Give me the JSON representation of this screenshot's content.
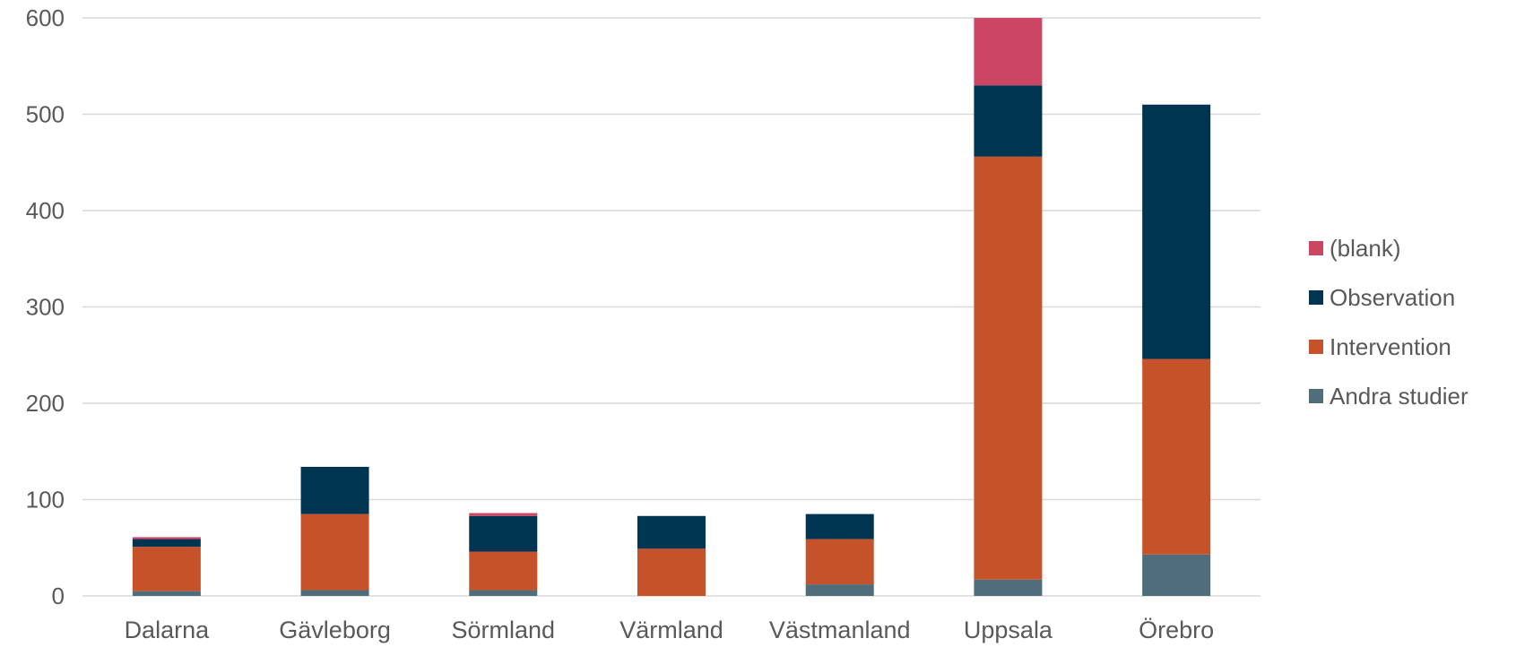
{
  "chart_data": {
    "type": "bar",
    "stacked": true,
    "categories": [
      "Dalarna",
      "Gävleborg",
      "Sörmland",
      "Värmland",
      "Västmanland",
      "Uppsala",
      "Örebro"
    ],
    "series": [
      {
        "name": "Andra studier",
        "color": "#4f6d7a",
        "values": [
          5,
          6,
          6,
          0,
          12,
          17,
          43
        ]
      },
      {
        "name": "Intervention",
        "color": "#c55228",
        "values": [
          46,
          79,
          40,
          49,
          47,
          439,
          203
        ]
      },
      {
        "name": "Observation",
        "color": "#003552",
        "values": [
          8,
          49,
          37,
          34,
          26,
          74,
          264
        ]
      },
      {
        "name": "(blank)",
        "color": "#cc4663",
        "values": [
          2,
          0,
          3,
          0,
          0,
          70,
          0
        ]
      }
    ],
    "y_ticks": [
      "0",
      "100",
      "200",
      "300",
      "400",
      "500",
      "600"
    ],
    "ylim": [
      0,
      600
    ],
    "grid": true,
    "legend_position": "right"
  }
}
